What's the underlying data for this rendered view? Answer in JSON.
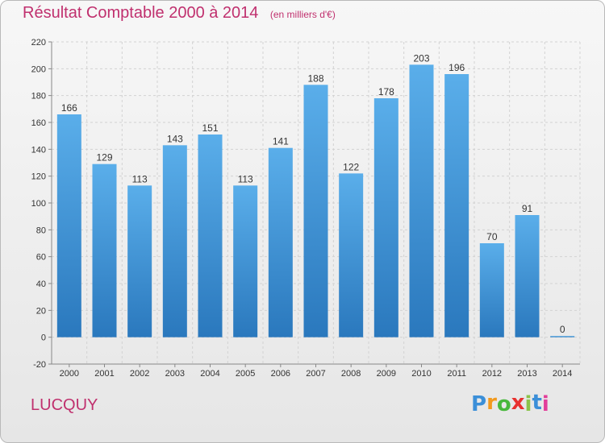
{
  "chart_data": {
    "type": "bar",
    "title": "Résultat Comptable 2000 à 2014",
    "unit_note": "(en milliers d'€)",
    "categories": [
      "2000",
      "2001",
      "2002",
      "2003",
      "2004",
      "2005",
      "2006",
      "2007",
      "2008",
      "2009",
      "2010",
      "2011",
      "2012",
      "2013",
      "2014"
    ],
    "values": [
      166,
      129,
      113,
      143,
      151,
      113,
      141,
      188,
      122,
      178,
      203,
      196,
      70,
      91,
      0
    ],
    "ylim": [
      -20,
      220
    ],
    "yticks": [
      -20,
      0,
      20,
      40,
      60,
      80,
      100,
      120,
      140,
      160,
      180,
      200,
      220
    ],
    "xlabel": "",
    "ylabel": "",
    "grid": true,
    "bar_color": "#4a9fe0"
  },
  "commune": "LUCQUY",
  "logo": {
    "letters": [
      "P",
      "r",
      "o",
      "x",
      "i",
      "t",
      "i"
    ],
    "colors": [
      "#3b8fd8",
      "#f29a1e",
      "#48b83c",
      "#e8312f",
      "#8bc34a",
      "#3b8fd8",
      "#e23d9a"
    ]
  }
}
